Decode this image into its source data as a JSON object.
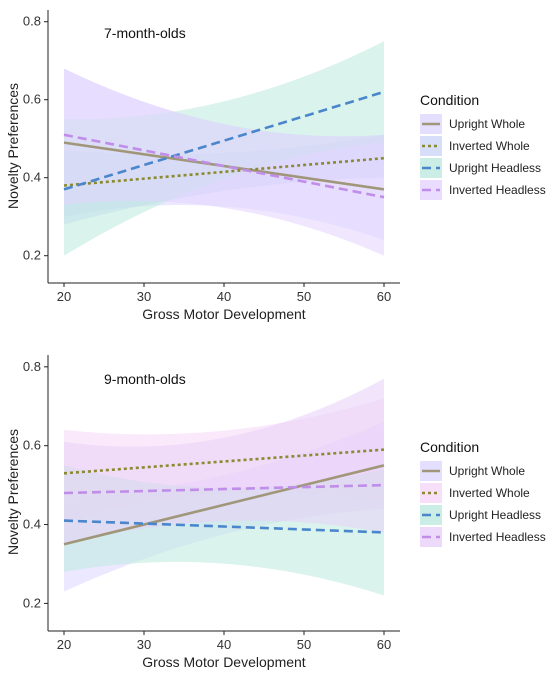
{
  "chart_data": [
    {
      "type": "line",
      "title": "7-month-olds",
      "xlabel": "Gross Motor Development",
      "ylabel": "Novelty Preferences",
      "xlim": [
        18,
        62
      ],
      "ylim": [
        0.13,
        0.83
      ],
      "xticks": [
        "20",
        "30",
        "40",
        "50",
        "60"
      ],
      "yticks": [
        "0.2",
        "0.4",
        "0.6",
        "0.8"
      ],
      "legend_title": "Condition",
      "legend_position": "right",
      "series": [
        {
          "name": "Upright Whole",
          "color": "#a0977a",
          "dash": "solid",
          "fill": "#ddd6ff",
          "x": [
            20,
            60
          ],
          "y": [
            0.49,
            0.37
          ],
          "lower": [
            0.3,
            0.24
          ],
          "upper": [
            0.68,
            0.51
          ]
        },
        {
          "name": "Inverted Whole",
          "color": "#8a8a30",
          "dash": "dotted",
          "fill": "#ccd6f7",
          "x": [
            20,
            60
          ],
          "y": [
            0.38,
            0.45
          ],
          "lower": [
            0.28,
            0.4
          ],
          "upper": [
            0.47,
            0.51
          ]
        },
        {
          "name": "Upright Headless",
          "color": "#4a86cc",
          "dash": "dashed",
          "fill": "#bde9df",
          "x": [
            20,
            60
          ],
          "y": [
            0.37,
            0.62
          ],
          "lower": [
            0.2,
            0.49
          ],
          "upper": [
            0.55,
            0.75
          ]
        },
        {
          "name": "Inverted Headless",
          "color": "#c08de8",
          "dash": "dashed",
          "fill": "#e3d3ff",
          "x": [
            20,
            60
          ],
          "y": [
            0.51,
            0.35
          ],
          "lower": [
            0.33,
            0.2
          ],
          "upper": [
            0.68,
            0.51
          ]
        }
      ]
    },
    {
      "type": "line",
      "title": "9-month-olds",
      "xlabel": "Gross Motor Development",
      "ylabel": "Novelty Preferences",
      "xlim": [
        18,
        62
      ],
      "ylim": [
        0.13,
        0.83
      ],
      "xticks": [
        "20",
        "30",
        "40",
        "50",
        "60"
      ],
      "yticks": [
        "0.2",
        "0.4",
        "0.6",
        "0.8"
      ],
      "legend_title": "Condition",
      "legend_position": "right",
      "series": [
        {
          "name": "Upright Whole",
          "color": "#a0977a",
          "dash": "solid",
          "fill": "#ddd6ff",
          "x": [
            20,
            60
          ],
          "y": [
            0.35,
            0.55
          ],
          "lower": [
            0.23,
            0.44
          ],
          "upper": [
            0.47,
            0.66
          ]
        },
        {
          "name": "Inverted Whole",
          "color": "#8a8a30",
          "dash": "dotted",
          "fill": "#f5d6f7",
          "x": [
            20,
            60
          ],
          "y": [
            0.53,
            0.59
          ],
          "lower": [
            0.41,
            0.46
          ],
          "upper": [
            0.64,
            0.72
          ]
        },
        {
          "name": "Upright Headless",
          "color": "#4a86cc",
          "dash": "dashed",
          "fill": "#bde9df",
          "x": [
            20,
            60
          ],
          "y": [
            0.41,
            0.38
          ],
          "lower": [
            0.28,
            0.22
          ],
          "upper": [
            0.55,
            0.54
          ]
        },
        {
          "name": "Inverted Headless",
          "color": "#c08de8",
          "dash": "dashed",
          "fill": "#e8cff8",
          "x": [
            20,
            60
          ],
          "y": [
            0.48,
            0.5
          ],
          "lower": [
            0.35,
            0.38
          ],
          "upper": [
            0.61,
            0.77
          ]
        }
      ]
    }
  ]
}
